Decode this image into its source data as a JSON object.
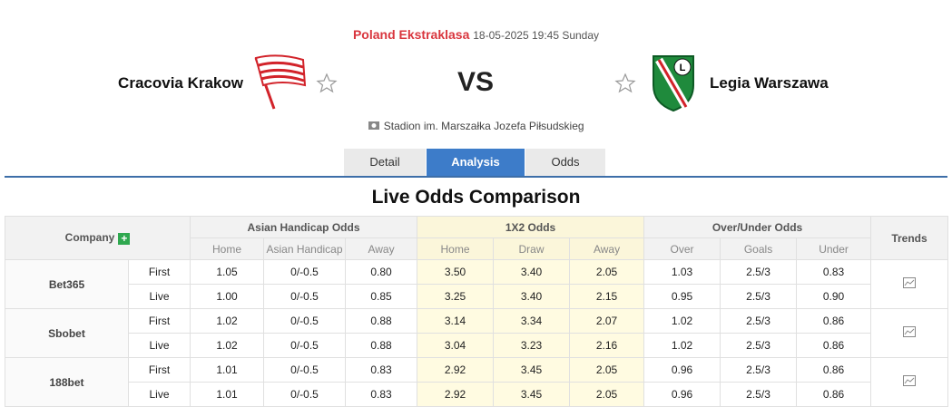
{
  "header": {
    "league": "Poland Ekstraklasa",
    "datetime": "18-05-2025 19:45 Sunday",
    "home_team": "Cracovia Krakow",
    "vs": "VS",
    "away_team": "Legia Warszawa",
    "stadium": "Stadion im. Marszałka Jozefa Piłsudskieg"
  },
  "tabs": [
    "Detail",
    "Analysis",
    "Odds"
  ],
  "title": "Live Odds Comparison",
  "table": {
    "company_header": "Company",
    "groups": [
      "Asian Handicap Odds",
      "1X2 Odds",
      "Over/Under Odds"
    ],
    "trends_header": "Trends",
    "subheaders": [
      "Home",
      "Asian Handicap",
      "Away",
      "Home",
      "Draw",
      "Away",
      "Over",
      "Goals",
      "Under"
    ],
    "companies": [
      {
        "name": "Bet365",
        "rows": [
          {
            "type": "First",
            "values": [
              "1.05",
              "0/-0.5",
              "0.80",
              "3.50",
              "3.40",
              "2.05",
              "1.03",
              "2.5/3",
              "0.83"
            ]
          },
          {
            "type": "Live",
            "values": [
              "1.00",
              "0/-0.5",
              "0.85",
              "3.25",
              "3.40",
              "2.15",
              "0.95",
              "2.5/3",
              "0.90"
            ]
          }
        ]
      },
      {
        "name": "Sbobet",
        "rows": [
          {
            "type": "First",
            "values": [
              "1.02",
              "0/-0.5",
              "0.88",
              "3.14",
              "3.34",
              "2.07",
              "1.02",
              "2.5/3",
              "0.86"
            ]
          },
          {
            "type": "Live",
            "values": [
              "1.02",
              "0/-0.5",
              "0.88",
              "3.04",
              "3.23",
              "2.16",
              "1.02",
              "2.5/3",
              "0.86"
            ]
          }
        ]
      },
      {
        "name": "188bet",
        "rows": [
          {
            "type": "First",
            "values": [
              "1.01",
              "0/-0.5",
              "0.83",
              "2.92",
              "3.45",
              "2.05",
              "0.96",
              "2.5/3",
              "0.86"
            ]
          },
          {
            "type": "Live",
            "values": [
              "1.01",
              "0/-0.5",
              "0.83",
              "2.92",
              "3.45",
              "2.05",
              "0.96",
              "2.5/3",
              "0.86"
            ]
          }
        ]
      }
    ]
  }
}
